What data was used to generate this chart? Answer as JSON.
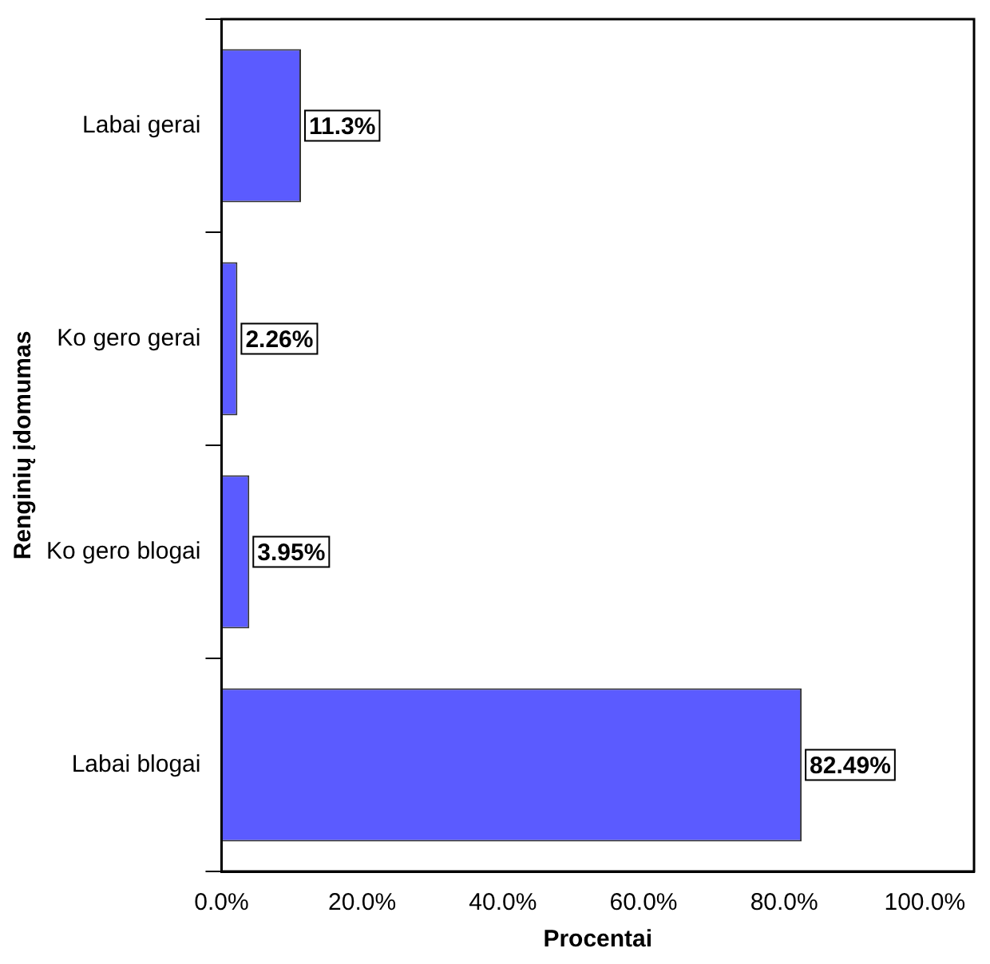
{
  "chart_data": {
    "type": "bar",
    "orientation": "horizontal",
    "xlabel": "Procentai",
    "ylabel": "Renginių įdomumas",
    "categories": [
      "Labai gerai",
      "Ko gero gerai",
      "Ko gero blogai",
      "Labai blogai"
    ],
    "values": [
      11.3,
      2.26,
      3.95,
      82.49
    ],
    "color": "#5b5bff",
    "value_labels": [
      "11.3%",
      "2.26%",
      "3.95%",
      "82.49%"
    ],
    "xlim": [
      0,
      107
    ],
    "xticks": [
      {
        "value": 0,
        "label": "0.0%"
      },
      {
        "value": 20,
        "label": "20.0%"
      },
      {
        "value": 40,
        "label": "40.0%"
      },
      {
        "value": 60,
        "label": "60.0%"
      },
      {
        "value": 80,
        "label": "80.0%"
      },
      {
        "value": 100,
        "label": "100.0%"
      }
    ],
    "grid": false,
    "legend": false
  }
}
